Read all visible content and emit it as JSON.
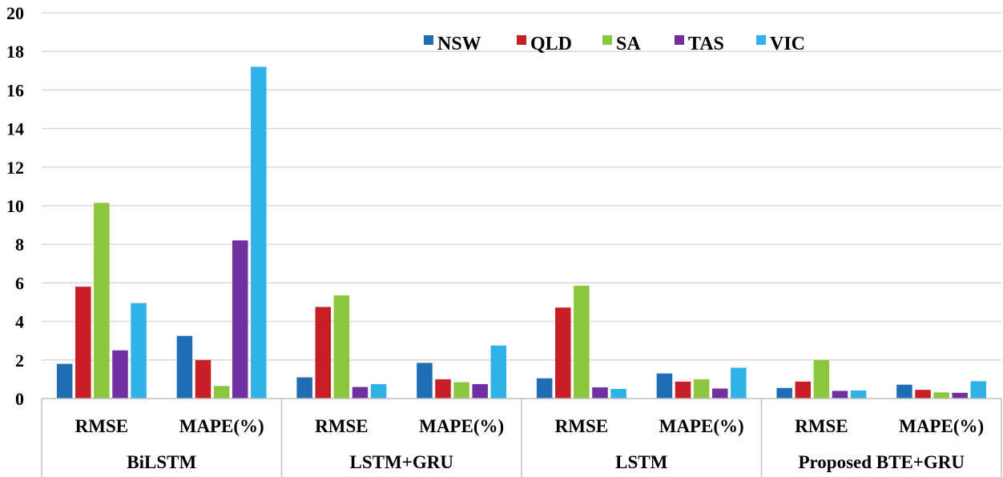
{
  "chart_data": {
    "type": "bar",
    "title": "",
    "xlabel": "",
    "ylabel": "",
    "ylim": [
      0,
      20
    ],
    "yticks": [
      0,
      2,
      4,
      6,
      8,
      10,
      12,
      14,
      16,
      18,
      20
    ],
    "grid": true,
    "legend_position": "top-right",
    "groups": [
      {
        "name": "BiLSTM",
        "metrics": [
          "RMSE",
          "MAPE(%)"
        ]
      },
      {
        "name": "LSTM+GRU",
        "metrics": [
          "RMSE",
          "MAPE(%)"
        ]
      },
      {
        "name": "LSTM",
        "metrics": [
          "RMSE",
          "MAPE(%)"
        ]
      },
      {
        "name": "Proposed BTE+GRU",
        "metrics": [
          "RMSE",
          "MAPE(%)"
        ]
      }
    ],
    "series": [
      {
        "name": "NSW",
        "color": "#1f6db5",
        "values": [
          1.8,
          3.25,
          1.1,
          1.85,
          1.05,
          1.3,
          0.55,
          0.72
        ]
      },
      {
        "name": "QLD",
        "color": "#c81f26",
        "values": [
          5.8,
          2.0,
          4.75,
          1.0,
          4.72,
          0.88,
          0.88,
          0.45
        ]
      },
      {
        "name": "SA",
        "color": "#8cc63f",
        "values": [
          10.15,
          0.65,
          5.35,
          0.85,
          5.85,
          1.0,
          2.0,
          0.32
        ]
      },
      {
        "name": "TAS",
        "color": "#7030a0",
        "values": [
          2.5,
          8.2,
          0.6,
          0.75,
          0.58,
          0.52,
          0.4,
          0.3
        ]
      },
      {
        "name": "VIC",
        "color": "#2eb2e8",
        "values": [
          4.95,
          17.2,
          0.75,
          2.75,
          0.5,
          1.6,
          0.42,
          0.9
        ]
      }
    ]
  }
}
